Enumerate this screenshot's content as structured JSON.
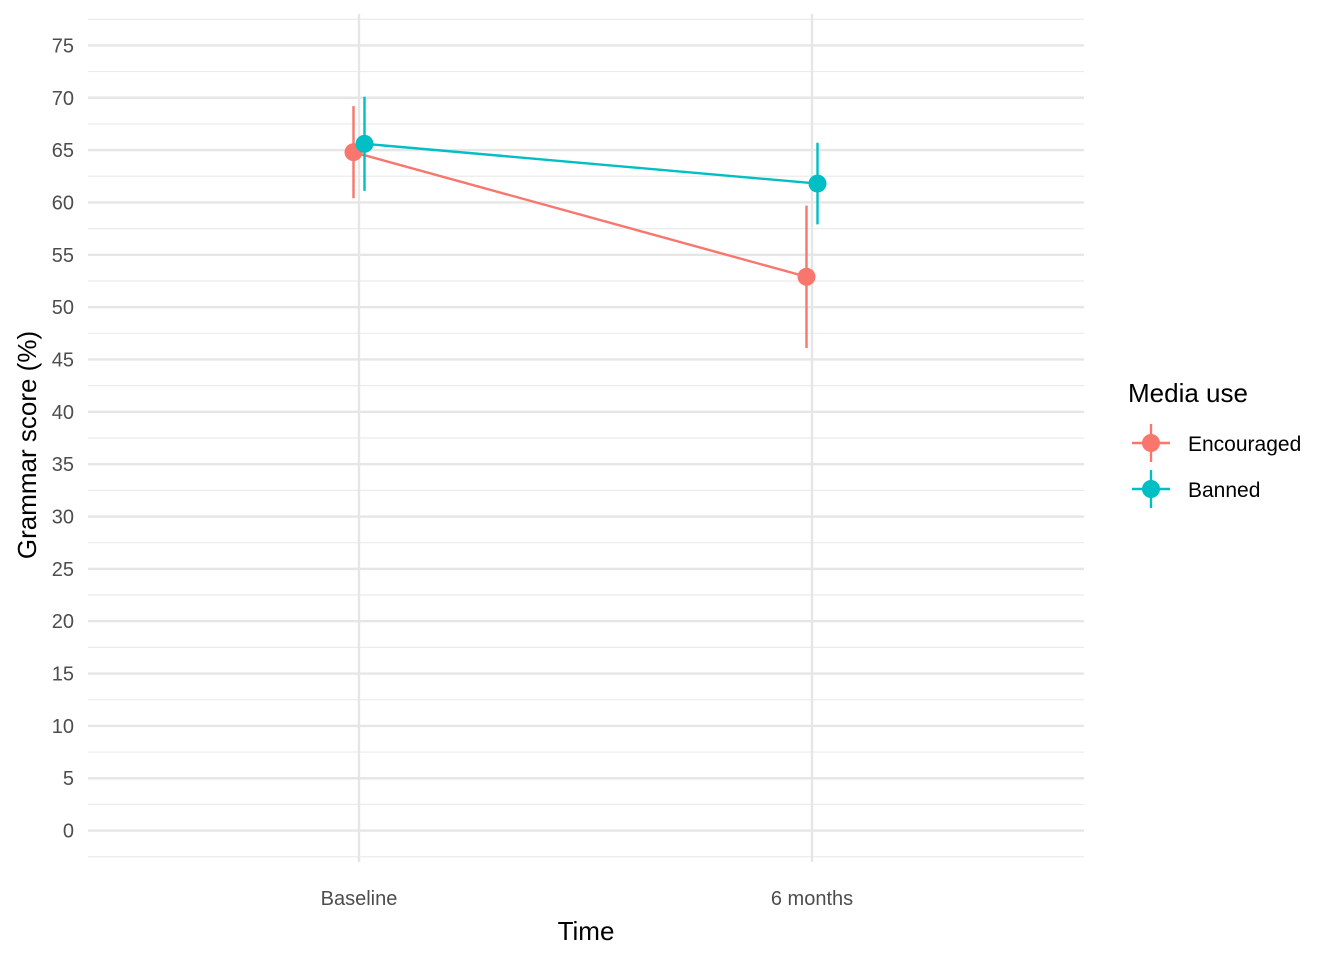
{
  "chart_data": {
    "type": "line",
    "xlabel": "Time",
    "ylabel": "Grammar score (%)",
    "categories": [
      "Baseline",
      "6 months"
    ],
    "ylim": [
      -3,
      78
    ],
    "y_ticks": [
      0,
      5,
      10,
      15,
      20,
      25,
      30,
      35,
      40,
      45,
      50,
      55,
      60,
      65,
      70,
      75
    ],
    "grid": true,
    "legend": {
      "title": "Media use",
      "placement": "right"
    },
    "series": [
      {
        "name": "Encouraged",
        "color": "#F8766D",
        "values": [
          64.8,
          52.9
        ],
        "error_lower": [
          60.4,
          46.1
        ],
        "error_upper": [
          69.2,
          59.7
        ]
      },
      {
        "name": "Banned",
        "color": "#00BFC4",
        "values": [
          65.6,
          61.8
        ],
        "error_lower": [
          61.1,
          57.9
        ],
        "error_upper": [
          70.1,
          65.7
        ]
      }
    ]
  }
}
